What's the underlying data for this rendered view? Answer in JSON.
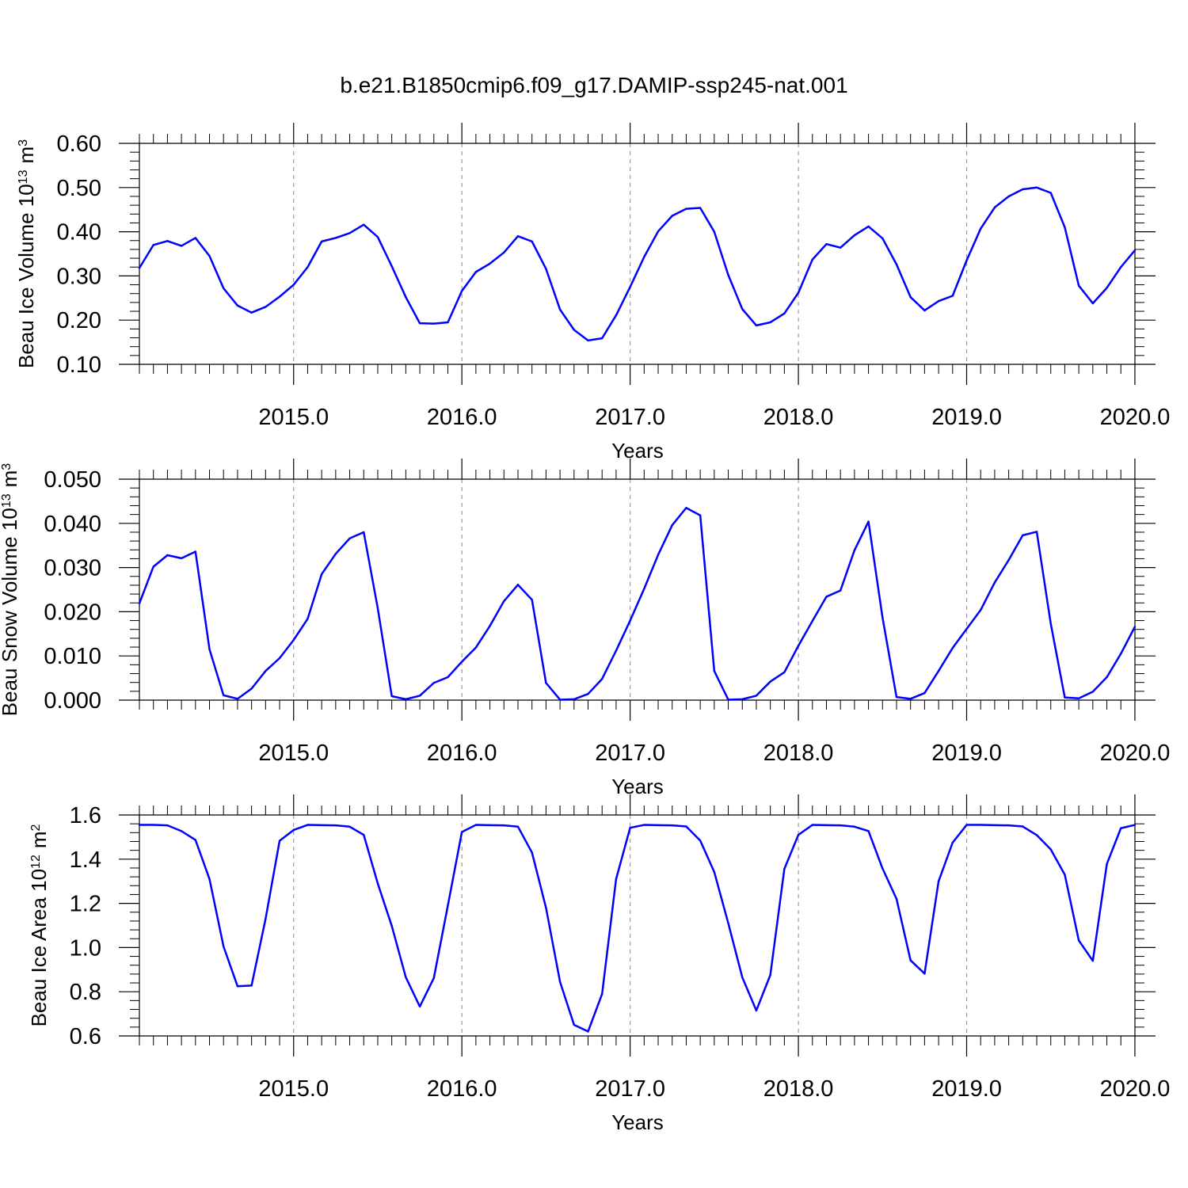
{
  "figure_title": "b.e21.B1850cmip6.f09_g17.DAMIP-ssp245-nat.001",
  "colors": {
    "line": "#0000ff",
    "axes": "#000000",
    "grid": "#888888"
  },
  "chart_data": [
    {
      "type": "line",
      "ylabel": "Beau Ice Volume 10",
      "ylabel_sup": "13",
      "ylabel_unit": "m",
      "ylabel_unit_sup": "3",
      "xlabel": "Years",
      "ylim": [
        0.1,
        0.6
      ],
      "yticks": [
        0.1,
        0.2,
        0.3,
        0.4,
        0.5,
        0.6
      ],
      "ytick_labels": [
        "0.10",
        "0.20",
        "0.30",
        "0.40",
        "0.50",
        "0.60"
      ],
      "xlim": [
        2014.0833,
        2020.0
      ],
      "xticks": [
        2015,
        2016,
        2017,
        2018,
        2019,
        2020
      ],
      "xtick_labels": [
        "2015.0",
        "2016.0",
        "2017.0",
        "2018.0",
        "2019.0",
        "2020.0"
      ],
      "grid": "vertical dashed at major x ticks",
      "x_start": 2014.0833,
      "x_step": 0.08333,
      "values": [
        0.318,
        0.37,
        0.379,
        0.368,
        0.386,
        0.345,
        0.272,
        0.233,
        0.217,
        0.23,
        0.253,
        0.28,
        0.32,
        0.378,
        0.386,
        0.397,
        0.416,
        0.388,
        0.322,
        0.252,
        0.193,
        0.192,
        0.195,
        0.266,
        0.309,
        0.328,
        0.353,
        0.39,
        0.378,
        0.316,
        0.224,
        0.178,
        0.154,
        0.159,
        0.211,
        0.275,
        0.343,
        0.401,
        0.436,
        0.452,
        0.454,
        0.4,
        0.302,
        0.225,
        0.188,
        0.195,
        0.215,
        0.262,
        0.337,
        0.372,
        0.364,
        0.392,
        0.412,
        0.385,
        0.326,
        0.252,
        0.222,
        0.243,
        0.255,
        0.335,
        0.407,
        0.455,
        0.48,
        0.496,
        0.5,
        0.488,
        0.41,
        0.278,
        0.238,
        0.273,
        0.32,
        0.358
      ]
    },
    {
      "type": "line",
      "ylabel": "Beau Snow Volume 10",
      "ylabel_sup": "13",
      "ylabel_unit": "m",
      "ylabel_unit_sup": "3",
      "xlabel": "Years",
      "ylim": [
        0.0,
        0.05
      ],
      "yticks": [
        0.0,
        0.01,
        0.02,
        0.03,
        0.04,
        0.05
      ],
      "ytick_labels": [
        "0.000",
        "0.010",
        "0.020",
        "0.030",
        "0.040",
        "0.050"
      ],
      "xlim": [
        2014.0833,
        2020.0
      ],
      "xticks": [
        2015,
        2016,
        2017,
        2018,
        2019,
        2020
      ],
      "xtick_labels": [
        "2015.0",
        "2016.0",
        "2017.0",
        "2018.0",
        "2019.0",
        "2020.0"
      ],
      "grid": "vertical dashed at major x ticks",
      "x_start": 2014.0833,
      "x_step": 0.08333,
      "values": [
        0.0219,
        0.0302,
        0.0328,
        0.0321,
        0.0336,
        0.0115,
        0.0011,
        0.0003,
        0.0026,
        0.0066,
        0.0095,
        0.0136,
        0.0184,
        0.0285,
        0.0331,
        0.0366,
        0.038,
        0.0208,
        0.0009,
        0.0002,
        0.001,
        0.0039,
        0.0052,
        0.0087,
        0.0119,
        0.0168,
        0.0224,
        0.0261,
        0.0227,
        0.0039,
        0.0001,
        0.0002,
        0.0014,
        0.0048,
        0.0112,
        0.018,
        0.0252,
        0.0329,
        0.0396,
        0.0435,
        0.0418,
        0.0066,
        0.0001,
        0.0002,
        0.001,
        0.0042,
        0.0063,
        0.0123,
        0.0179,
        0.0234,
        0.0248,
        0.0339,
        0.0404,
        0.0187,
        0.0007,
        0.0003,
        0.0016,
        0.0066,
        0.0118,
        0.0161,
        0.0204,
        0.0266,
        0.0317,
        0.0373,
        0.0381,
        0.0173,
        0.0006,
        0.0004,
        0.0019,
        0.0052,
        0.0105,
        0.0166
      ]
    },
    {
      "type": "line",
      "ylabel": "Beau Ice Area 10",
      "ylabel_sup": "12",
      "ylabel_unit": "m",
      "ylabel_unit_sup": "2",
      "xlabel": "Years",
      "ylim": [
        0.6,
        1.6
      ],
      "yticks": [
        0.6,
        0.8,
        1.0,
        1.2,
        1.4,
        1.6
      ],
      "ytick_labels": [
        "0.6",
        "0.8",
        "1.0",
        "1.2",
        "1.4",
        "1.6"
      ],
      "xlim": [
        2014.0833,
        2020.0
      ],
      "xticks": [
        2015,
        2016,
        2017,
        2018,
        2019,
        2020
      ],
      "xtick_labels": [
        "2015.0",
        "2016.0",
        "2017.0",
        "2018.0",
        "2019.0",
        "2020.0"
      ],
      "grid": "vertical dashed at major x ticks",
      "x_start": 2014.0833,
      "x_step": 0.08333,
      "values": [
        1.555,
        1.555,
        1.553,
        1.527,
        1.487,
        1.31,
        1.005,
        0.825,
        0.828,
        1.13,
        1.483,
        1.532,
        1.555,
        1.554,
        1.553,
        1.547,
        1.51,
        1.29,
        1.098,
        0.866,
        0.733,
        0.862,
        1.19,
        1.523,
        1.555,
        1.554,
        1.553,
        1.547,
        1.43,
        1.18,
        0.845,
        0.65,
        0.62,
        0.79,
        1.31,
        1.542,
        1.555,
        1.554,
        1.553,
        1.548,
        1.484,
        1.342,
        1.11,
        0.865,
        0.715,
        0.876,
        1.356,
        1.51,
        1.555,
        1.554,
        1.553,
        1.547,
        1.527,
        1.358,
        1.22,
        0.942,
        0.882,
        1.3,
        1.475,
        1.555,
        1.555,
        1.554,
        1.553,
        1.548,
        1.509,
        1.444,
        1.33,
        1.032,
        0.94,
        1.378,
        1.54,
        1.555
      ]
    }
  ]
}
